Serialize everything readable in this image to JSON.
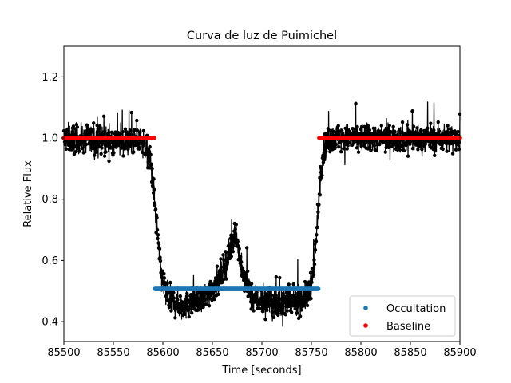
{
  "chart_data": {
    "type": "scatter",
    "title": "Curva de luz de Puimichel",
    "xlabel": "Time [seconds]",
    "ylabel": "Relative Flux",
    "xlim": [
      85500,
      85900
    ],
    "ylim": [
      0.335,
      1.3
    ],
    "xticks": [
      85500,
      85550,
      85600,
      85650,
      85700,
      85750,
      85800,
      85850,
      85900
    ],
    "yticks": [
      0.4,
      0.6,
      0.8,
      1.0,
      1.2
    ],
    "xtick_labels": [
      "85500",
      "85550",
      "85600",
      "85650",
      "85700",
      "85750",
      "85800",
      "85850",
      "85900"
    ],
    "ytick_labels": [
      "0.4",
      "0.6",
      "0.8",
      "1.0",
      "1.2"
    ],
    "legend_position": "lower-right",
    "colors": {
      "data": "#000000",
      "occultation": "#1f77b4",
      "baseline": "#ff0000"
    },
    "series": [
      {
        "name": "Occultation",
        "kind": "scatter",
        "color": "#1f77b4",
        "x_range": [
          85592,
          85757
        ],
        "y": 0.507
      },
      {
        "name": "Baseline",
        "kind": "scatter",
        "color": "#ff0000",
        "segments": [
          [
            85500,
            85591
          ],
          [
            85758,
            85900
          ]
        ],
        "y": 1.0
      }
    ],
    "observed_light_curve": {
      "kind": "line+markers",
      "color": "#000000",
      "noise_amplitude": 0.045,
      "profile": [
        {
          "x": 85500,
          "y": 1.0
        },
        {
          "x": 85580,
          "y": 0.985
        },
        {
          "x": 85587,
          "y": 0.93
        },
        {
          "x": 85590,
          "y": 0.85
        },
        {
          "x": 85594,
          "y": 0.7
        },
        {
          "x": 85598,
          "y": 0.56
        },
        {
          "x": 85605,
          "y": 0.47
        },
        {
          "x": 85620,
          "y": 0.45
        },
        {
          "x": 85640,
          "y": 0.47
        },
        {
          "x": 85655,
          "y": 0.53
        },
        {
          "x": 85665,
          "y": 0.6
        },
        {
          "x": 85673,
          "y": 0.7
        },
        {
          "x": 85680,
          "y": 0.56
        },
        {
          "x": 85690,
          "y": 0.48
        },
        {
          "x": 85710,
          "y": 0.46
        },
        {
          "x": 85730,
          "y": 0.46
        },
        {
          "x": 85745,
          "y": 0.48
        },
        {
          "x": 85752,
          "y": 0.55
        },
        {
          "x": 85756,
          "y": 0.72
        },
        {
          "x": 85759,
          "y": 0.88
        },
        {
          "x": 85763,
          "y": 0.97
        },
        {
          "x": 85770,
          "y": 1.0
        },
        {
          "x": 85900,
          "y": 1.0
        }
      ]
    }
  }
}
